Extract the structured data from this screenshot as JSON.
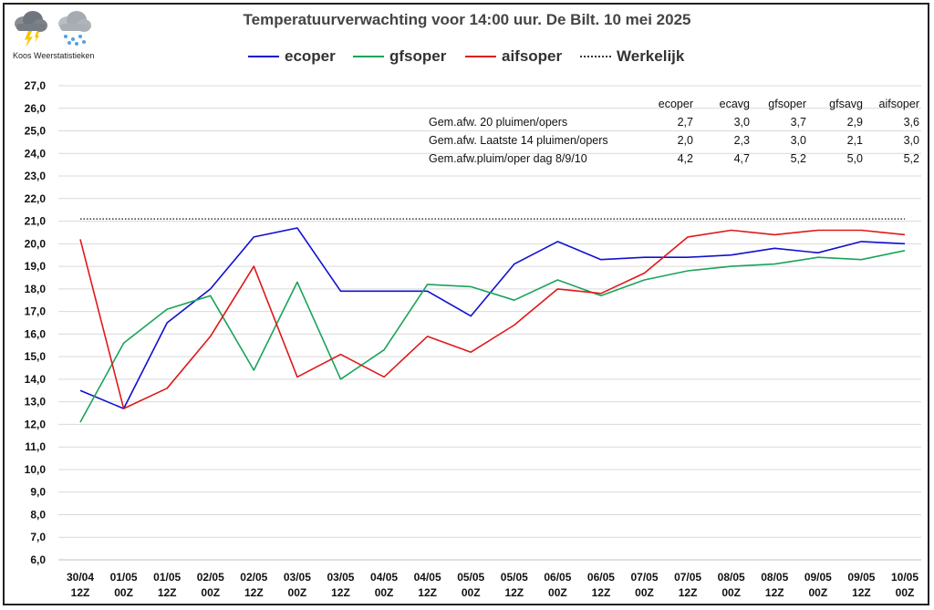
{
  "title": "Temperatuurverwachting voor 14:00 uur. De Bilt. 10 mei 2025",
  "logo": {
    "caption": "Koos Weerstatistieken",
    "icons": [
      "thunder-cloud-icon",
      "snow-cloud-icon"
    ]
  },
  "legend": [
    {
      "name": "ecoper",
      "color": "#1010d0",
      "style": "solid"
    },
    {
      "name": "gfsoper",
      "color": "#1aa35a",
      "style": "solid"
    },
    {
      "name": "aifsoper",
      "color": "#e01818",
      "style": "solid"
    },
    {
      "name": "Werkelijk",
      "color": "#333333",
      "style": "dotted"
    }
  ],
  "stats": {
    "headers": [
      "ecoper",
      "ecavg",
      "gfsoper",
      "gfsavg",
      "aifsoper"
    ],
    "rows": [
      {
        "label": "Gem.afw. 20 pluimen/opers",
        "values": [
          "2,7",
          "3,0",
          "3,7",
          "2,9",
          "3,6"
        ]
      },
      {
        "label": "Gem.afw. Laatste 14 pluimen/opers",
        "values": [
          "2,0",
          "2,3",
          "3,0",
          "2,1",
          "3,0"
        ]
      },
      {
        "label": "Gem.afw.pluim/oper dag 8/9/10",
        "values": [
          "4,2",
          "4,7",
          "5,2",
          "5,0",
          "5,2"
        ]
      }
    ]
  },
  "chart_data": {
    "type": "line",
    "title": "Temperatuurverwachting voor 14:00 uur. De Bilt. 10 mei 2025",
    "xlabel": "",
    "ylabel": "",
    "ylim": [
      6.0,
      27.0
    ],
    "ytick_step": 1.0,
    "ytick_labels": [
      "6,0",
      "7,0",
      "8,0",
      "9,0",
      "10,0",
      "11,0",
      "12,0",
      "13,0",
      "14,0",
      "15,0",
      "16,0",
      "17,0",
      "18,0",
      "19,0",
      "20,0",
      "21,0",
      "22,0",
      "23,0",
      "24,0",
      "25,0",
      "26,0",
      "27,0"
    ],
    "grid": true,
    "legend_position": "top",
    "categories": [
      [
        "30/04",
        "12Z"
      ],
      [
        "01/05",
        "00Z"
      ],
      [
        "01/05",
        "12Z"
      ],
      [
        "02/05",
        "00Z"
      ],
      [
        "02/05",
        "12Z"
      ],
      [
        "03/05",
        "00Z"
      ],
      [
        "03/05",
        "12Z"
      ],
      [
        "04/05",
        "00Z"
      ],
      [
        "04/05",
        "12Z"
      ],
      [
        "05/05",
        "00Z"
      ],
      [
        "05/05",
        "12Z"
      ],
      [
        "06/05",
        "00Z"
      ],
      [
        "06/05",
        "12Z"
      ],
      [
        "07/05",
        "00Z"
      ],
      [
        "07/05",
        "12Z"
      ],
      [
        "08/05",
        "00Z"
      ],
      [
        "08/05",
        "12Z"
      ],
      [
        "09/05",
        "00Z"
      ],
      [
        "09/05",
        "12Z"
      ],
      [
        "10/05",
        "00Z"
      ]
    ],
    "series": [
      {
        "name": "ecoper",
        "color": "#1010d0",
        "values": [
          13.5,
          12.7,
          16.5,
          18.0,
          20.3,
          20.7,
          17.9,
          17.9,
          17.9,
          16.8,
          19.1,
          20.1,
          19.3,
          19.4,
          19.4,
          19.5,
          19.8,
          19.6,
          20.1,
          20.0
        ]
      },
      {
        "name": "gfsoper",
        "color": "#1aa35a",
        "values": [
          12.1,
          15.6,
          17.1,
          17.7,
          14.4,
          18.3,
          14.0,
          15.3,
          18.2,
          18.1,
          17.5,
          18.4,
          17.7,
          18.4,
          18.8,
          19.0,
          19.1,
          19.4,
          19.3,
          19.7
        ]
      },
      {
        "name": "aifsoper",
        "color": "#e01818",
        "values": [
          20.2,
          12.7,
          13.6,
          15.9,
          19.0,
          14.1,
          15.1,
          14.1,
          15.9,
          15.2,
          16.4,
          18.0,
          17.8,
          18.7,
          20.3,
          20.6,
          20.4,
          20.6,
          20.6,
          20.4
        ]
      },
      {
        "name": "Werkelijk",
        "color": "#333333",
        "dotted": true,
        "value": 21.1
      }
    ]
  }
}
